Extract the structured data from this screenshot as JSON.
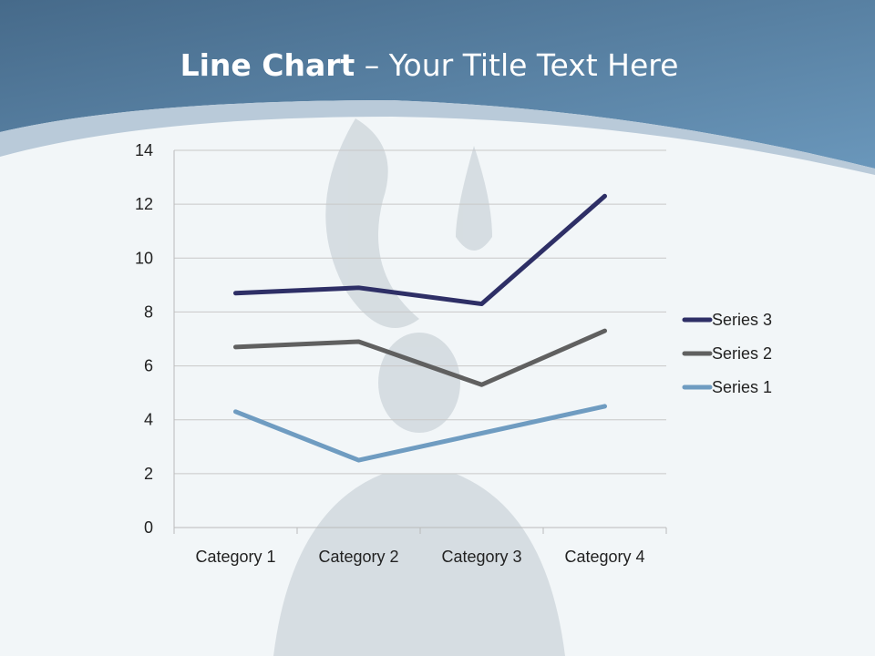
{
  "slide": {
    "title_bold": "Line Chart",
    "title_rest": " – Your Title Text Here",
    "header_color": "#5b86ab",
    "background_color": "#f2f6f8"
  },
  "chart_data": {
    "type": "line",
    "title": "",
    "xlabel": "",
    "ylabel": "",
    "categories": [
      "Category 1",
      "Category 2",
      "Category 3",
      "Category 4"
    ],
    "ylim": [
      0,
      14
    ],
    "yticks": [
      0,
      2,
      4,
      6,
      8,
      10,
      12,
      14
    ],
    "grid": true,
    "legend_position": "right",
    "series": [
      {
        "name": "Series 1",
        "values": [
          4.3,
          2.5,
          3.5,
          4.5
        ],
        "color": "#6f9cc1"
      },
      {
        "name": "Series 2",
        "values": [
          6.7,
          6.9,
          5.3,
          7.3
        ],
        "color": "#606060"
      },
      {
        "name": "Series 3",
        "values": [
          8.7,
          8.9,
          8.3,
          12.3
        ],
        "color": "#2e2f66"
      }
    ]
  }
}
